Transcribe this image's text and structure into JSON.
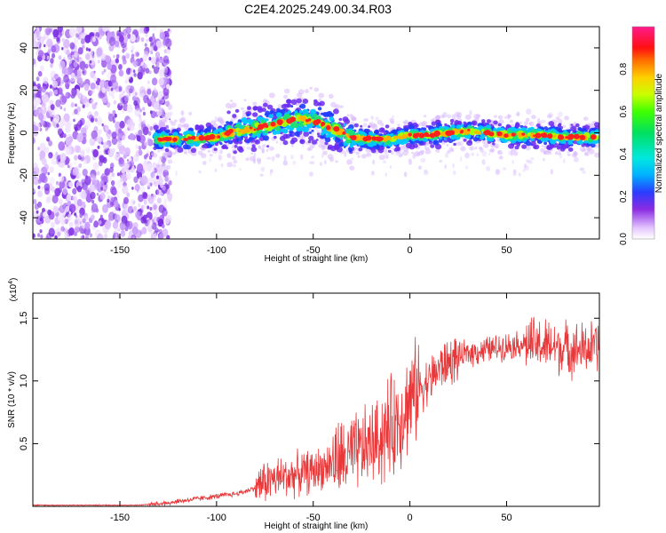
{
  "title": "C2E4.2025.249.00.34.R03",
  "chart_data": [
    {
      "type": "heatmap",
      "name": "spectrogram",
      "xlabel": "Height of straight line (km)",
      "ylabel": "Frequency (Hz)",
      "xlim": [
        -195,
        98
      ],
      "ylim": [
        -50,
        50
      ],
      "xticks": [
        -150,
        -100,
        -50,
        0,
        50
      ],
      "yticks": [
        40,
        20,
        0,
        -20,
        -40
      ],
      "noise_region_x": [
        -195,
        -130
      ],
      "signal_band": {
        "x": [
          -132,
          -120,
          -100,
          -90,
          -80,
          -70,
          -60,
          -50,
          -40,
          -30,
          -20,
          -10,
          0,
          10,
          20,
          30,
          40,
          50,
          60,
          70,
          80,
          90,
          97
        ],
        "center_hz": [
          -3,
          -3,
          -2,
          1,
          2,
          4,
          6,
          6,
          2,
          -2,
          -3,
          -3,
          -1,
          -1,
          0,
          1,
          0,
          -1,
          -1,
          -1,
          -2,
          -2,
          -2
        ]
      },
      "colorbar": {
        "label": "Normalized spectral amplitude",
        "range": [
          0.0,
          1.0
        ],
        "ticks": [
          0.0,
          0.2,
          0.4,
          0.6,
          0.8
        ]
      }
    },
    {
      "type": "line",
      "name": "snr",
      "xlabel": "Height of straight line (km)",
      "ylabel": "SNR (10 * v/v)",
      "scale_label": "(x10",
      "scale_exp": "4",
      "scale_close": ")",
      "xlim": [
        -195,
        98
      ],
      "ylim": [
        0,
        1.7
      ],
      "xticks": [
        -150,
        -100,
        -50,
        0,
        50
      ],
      "yticks": [
        0.5,
        1.0,
        1.5
      ],
      "series": [
        {
          "name": "SNR",
          "color": "#e8383a",
          "x": [
            -195,
            -160,
            -140,
            -130,
            -120,
            -110,
            -100,
            -90,
            -85,
            -80,
            -75,
            -70,
            -60,
            -50,
            -40,
            -30,
            -25,
            -20,
            -15,
            -10,
            -5,
            0,
            5,
            10,
            15,
            20,
            30,
            40,
            50,
            60,
            70,
            80,
            90,
            97
          ],
          "y": [
            0.01,
            0.01,
            0.01,
            0.02,
            0.04,
            0.06,
            0.08,
            0.1,
            0.12,
            0.15,
            0.2,
            0.22,
            0.25,
            0.28,
            0.35,
            0.4,
            0.45,
            0.5,
            0.55,
            0.62,
            0.72,
            0.85,
            0.95,
            1.0,
            1.1,
            1.15,
            1.22,
            1.25,
            1.28,
            1.3,
            1.28,
            1.26,
            1.25,
            1.28
          ]
        }
      ]
    }
  ]
}
